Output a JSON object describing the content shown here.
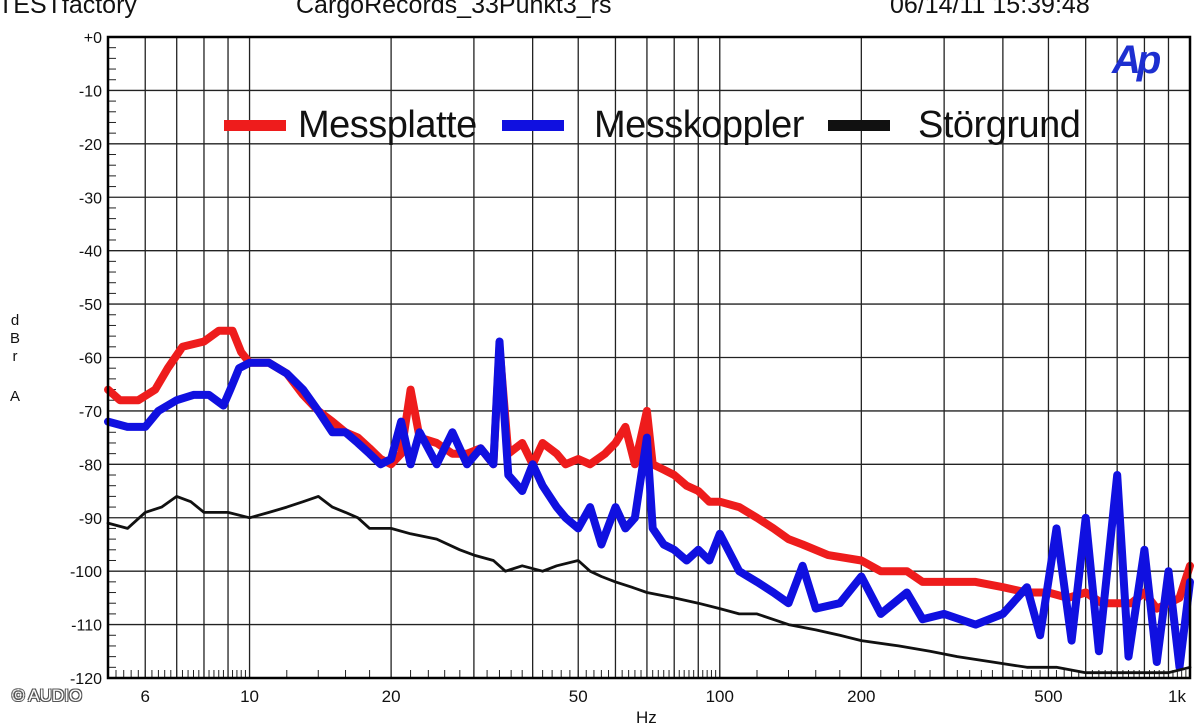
{
  "header": {
    "left": "TESTfactory",
    "middle": "CargoRecords_33Punkt3_rs",
    "right": "06/14/11 15:39:48"
  },
  "logo_text": "Ap",
  "copyright": "© AUDIO",
  "colors": {
    "red": "#ee1c1c",
    "blue": "#1010e0",
    "black": "#111111",
    "logo": "#1d2fd0"
  },
  "chart_data": {
    "type": "line",
    "xscale": "log",
    "grid": true,
    "legend_position": "top-center",
    "xlim": [
      5,
      1000
    ],
    "ylim": [
      -120,
      0
    ],
    "ylabel_lines": [
      "d",
      "B",
      "r",
      "A"
    ],
    "xlabel": "Hz",
    "y_ticks": [
      "+0",
      "-10",
      "-20",
      "-30",
      "-40",
      "-50",
      "-60",
      "-70",
      "-80",
      "-90",
      "-100",
      "-110",
      "-120"
    ],
    "x_ticks": [
      {
        "v": 6,
        "label": "6"
      },
      {
        "v": 10,
        "label": "10"
      },
      {
        "v": 20,
        "label": "20"
      },
      {
        "v": 50,
        "label": "50"
      },
      {
        "v": 100,
        "label": "100"
      },
      {
        "v": 200,
        "label": "200"
      },
      {
        "v": 500,
        "label": "500"
      },
      {
        "v": 1000,
        "label": "1k"
      }
    ],
    "series": [
      {
        "name": "Messplatte",
        "color": "#ee1c1c",
        "points": [
          [
            5,
            -66
          ],
          [
            5.3,
            -68
          ],
          [
            5.8,
            -68
          ],
          [
            6.3,
            -66
          ],
          [
            6.7,
            -62
          ],
          [
            7.2,
            -58
          ],
          [
            8,
            -57
          ],
          [
            8.6,
            -55
          ],
          [
            9.2,
            -55
          ],
          [
            9.6,
            -59
          ],
          [
            10,
            -61
          ],
          [
            11,
            -61
          ],
          [
            12,
            -63
          ],
          [
            13,
            -67
          ],
          [
            14,
            -70
          ],
          [
            15,
            -72
          ],
          [
            16,
            -74
          ],
          [
            17,
            -75
          ],
          [
            18,
            -77
          ],
          [
            19,
            -79
          ],
          [
            20,
            -80
          ],
          [
            21,
            -78
          ],
          [
            22,
            -66
          ],
          [
            23,
            -75
          ],
          [
            25,
            -76
          ],
          [
            27,
            -78
          ],
          [
            29,
            -78
          ],
          [
            31,
            -77
          ],
          [
            33,
            -80
          ],
          [
            34,
            -58
          ],
          [
            35.5,
            -78
          ],
          [
            38,
            -76
          ],
          [
            40,
            -80
          ],
          [
            42,
            -76
          ],
          [
            45,
            -78
          ],
          [
            47,
            -80
          ],
          [
            50,
            -79
          ],
          [
            53,
            -80
          ],
          [
            57,
            -78
          ],
          [
            60,
            -76
          ],
          [
            63,
            -73
          ],
          [
            66,
            -80
          ],
          [
            70,
            -70
          ],
          [
            72,
            -80
          ],
          [
            76,
            -81
          ],
          [
            80,
            -82
          ],
          [
            85,
            -84
          ],
          [
            90,
            -85
          ],
          [
            95,
            -87
          ],
          [
            100,
            -87
          ],
          [
            110,
            -88
          ],
          [
            120,
            -90
          ],
          [
            130,
            -92
          ],
          [
            140,
            -94
          ],
          [
            150,
            -95
          ],
          [
            170,
            -97
          ],
          [
            200,
            -98
          ],
          [
            220,
            -100
          ],
          [
            250,
            -100
          ],
          [
            270,
            -102
          ],
          [
            300,
            -102
          ],
          [
            350,
            -102
          ],
          [
            400,
            -103
          ],
          [
            450,
            -104
          ],
          [
            500,
            -104
          ],
          [
            550,
            -105
          ],
          [
            600,
            -104
          ],
          [
            650,
            -106
          ],
          [
            700,
            -106
          ],
          [
            750,
            -106
          ],
          [
            800,
            -104
          ],
          [
            850,
            -107
          ],
          [
            900,
            -106
          ],
          [
            950,
            -105
          ],
          [
            1000,
            -99
          ]
        ]
      },
      {
        "name": "Messkoppler",
        "color": "#1010e0",
        "points": [
          [
            5,
            -72
          ],
          [
            5.5,
            -73
          ],
          [
            6,
            -73
          ],
          [
            6.4,
            -70
          ],
          [
            7,
            -68
          ],
          [
            7.6,
            -67
          ],
          [
            8.2,
            -67
          ],
          [
            8.8,
            -69
          ],
          [
            9.1,
            -66
          ],
          [
            9.5,
            -62
          ],
          [
            10,
            -61
          ],
          [
            11,
            -61
          ],
          [
            12,
            -63
          ],
          [
            13,
            -66
          ],
          [
            14,
            -70
          ],
          [
            15,
            -74
          ],
          [
            16,
            -74
          ],
          [
            17,
            -76
          ],
          [
            18,
            -78
          ],
          [
            19,
            -80
          ],
          [
            20,
            -79
          ],
          [
            21,
            -72
          ],
          [
            22,
            -80
          ],
          [
            23,
            -74
          ],
          [
            25,
            -80
          ],
          [
            27,
            -74
          ],
          [
            29,
            -80
          ],
          [
            31,
            -77
          ],
          [
            33,
            -80
          ],
          [
            34,
            -57
          ],
          [
            35.5,
            -82
          ],
          [
            38,
            -85
          ],
          [
            40,
            -80
          ],
          [
            42,
            -84
          ],
          [
            45,
            -88
          ],
          [
            47,
            -90
          ],
          [
            50,
            -92
          ],
          [
            53,
            -88
          ],
          [
            56,
            -95
          ],
          [
            60,
            -88
          ],
          [
            63,
            -92
          ],
          [
            66,
            -90
          ],
          [
            70,
            -75
          ],
          [
            72,
            -92
          ],
          [
            76,
            -95
          ],
          [
            80,
            -96
          ],
          [
            85,
            -98
          ],
          [
            90,
            -96
          ],
          [
            95,
            -98
          ],
          [
            100,
            -93
          ],
          [
            110,
            -100
          ],
          [
            120,
            -102
          ],
          [
            130,
            -104
          ],
          [
            140,
            -106
          ],
          [
            150,
            -99
          ],
          [
            160,
            -107
          ],
          [
            180,
            -106
          ],
          [
            200,
            -101
          ],
          [
            220,
            -108
          ],
          [
            250,
            -104
          ],
          [
            270,
            -109
          ],
          [
            300,
            -108
          ],
          [
            350,
            -110
          ],
          [
            400,
            -108
          ],
          [
            450,
            -103
          ],
          [
            480,
            -112
          ],
          [
            520,
            -92
          ],
          [
            560,
            -113
          ],
          [
            600,
            -90
          ],
          [
            640,
            -115
          ],
          [
            700,
            -82
          ],
          [
            740,
            -116
          ],
          [
            800,
            -96
          ],
          [
            850,
            -117
          ],
          [
            900,
            -100
          ],
          [
            950,
            -118
          ],
          [
            1000,
            -102
          ]
        ]
      },
      {
        "name": "Störgrund",
        "color": "#111111",
        "points": [
          [
            5,
            -91
          ],
          [
            5.5,
            -92
          ],
          [
            6,
            -89
          ],
          [
            6.5,
            -88
          ],
          [
            7,
            -86
          ],
          [
            7.5,
            -87
          ],
          [
            8,
            -89
          ],
          [
            9,
            -89
          ],
          [
            10,
            -90
          ],
          [
            11,
            -89
          ],
          [
            12,
            -88
          ],
          [
            13,
            -87
          ],
          [
            14,
            -86
          ],
          [
            15,
            -88
          ],
          [
            16,
            -89
          ],
          [
            17,
            -90
          ],
          [
            18,
            -92
          ],
          [
            20,
            -92
          ],
          [
            22,
            -93
          ],
          [
            25,
            -94
          ],
          [
            28,
            -96
          ],
          [
            30,
            -97
          ],
          [
            33,
            -98
          ],
          [
            35,
            -100
          ],
          [
            38,
            -99
          ],
          [
            42,
            -100
          ],
          [
            45,
            -99
          ],
          [
            50,
            -98
          ],
          [
            53,
            -100
          ],
          [
            56,
            -101
          ],
          [
            60,
            -102
          ],
          [
            65,
            -103
          ],
          [
            70,
            -104
          ],
          [
            80,
            -105
          ],
          [
            90,
            -106
          ],
          [
            100,
            -107
          ],
          [
            110,
            -108
          ],
          [
            120,
            -108
          ],
          [
            140,
            -110
          ],
          [
            160,
            -111
          ],
          [
            180,
            -112
          ],
          [
            200,
            -113
          ],
          [
            240,
            -114
          ],
          [
            280,
            -115
          ],
          [
            320,
            -116
          ],
          [
            380,
            -117
          ],
          [
            450,
            -118
          ],
          [
            520,
            -118
          ],
          [
            600,
            -119
          ],
          [
            700,
            -119
          ],
          [
            800,
            -119
          ],
          [
            900,
            -119
          ],
          [
            1000,
            -118
          ]
        ]
      }
    ]
  }
}
